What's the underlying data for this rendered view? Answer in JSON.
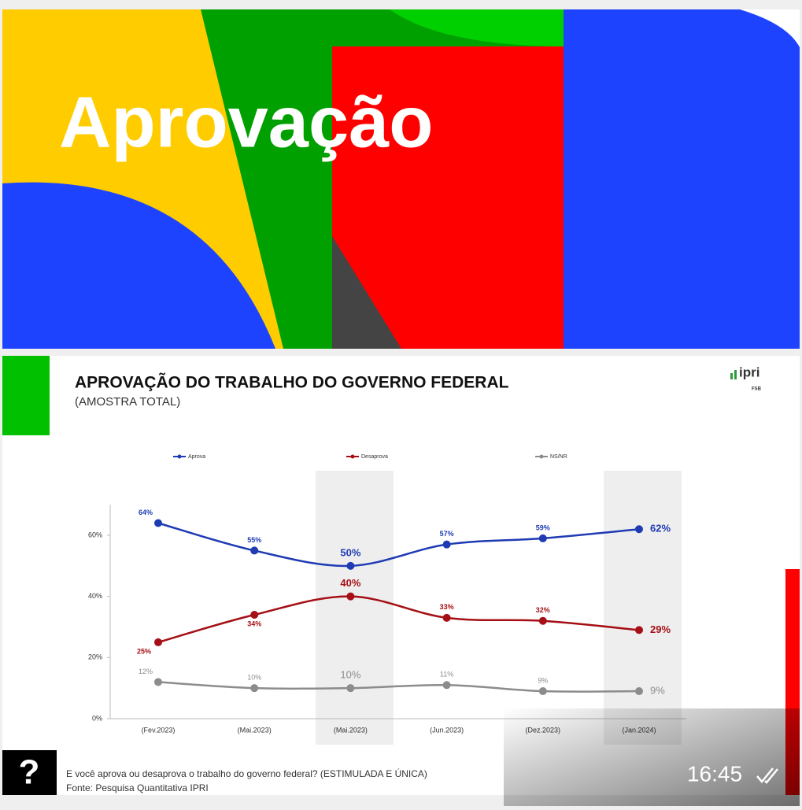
{
  "banner": {
    "title": "Aprovação"
  },
  "logo": {
    "name": "ipri",
    "sub": "FSB"
  },
  "chart_data": {
    "type": "line",
    "title": "APROVAÇÃO DO TRABALHO DO GOVERNO FEDERAL",
    "subtitle": "(AMOSTRA TOTAL)",
    "categories": [
      "(Fev.2023)",
      "(Mai.2023)",
      "(Mai.2023)",
      "(Jun.2023)",
      "(Dez.2023)",
      "(Jan.2024)"
    ],
    "series": [
      {
        "name": "Aprova",
        "color": "#1f3bb3",
        "values": [
          64,
          55,
          50,
          57,
          59,
          62
        ],
        "value_labels": [
          "64%",
          "55%",
          "50%",
          "57%",
          "59%",
          "62%"
        ]
      },
      {
        "name": "Desaprova",
        "color": "#a50f15",
        "values": [
          25,
          34,
          40,
          33,
          32,
          29
        ],
        "value_labels": [
          "25%",
          "34%",
          "40%",
          "33%",
          "32%",
          "29%"
        ]
      },
      {
        "name": "NS/NR",
        "color": "#8c8c8c",
        "values": [
          12,
          10,
          10,
          11,
          9,
          9
        ],
        "value_labels": [
          "12%",
          "10%",
          "10%",
          "11%",
          "9%",
          "9%"
        ]
      }
    ],
    "ylim": [
      0,
      70
    ],
    "yticks": [
      {
        "value": 0,
        "label": "0%"
      },
      {
        "value": 20,
        "label": "20%"
      },
      {
        "value": 40,
        "label": "40%"
      },
      {
        "value": 60,
        "label": "60%"
      }
    ],
    "legend": "top"
  },
  "question": "E você aprova ou desaprova o trabalho do governo federal? (ESTIMULADA E ÚNICA)",
  "source": "Fonte: Pesquisa Quantitativa IPRI",
  "help_icon": "?",
  "time": "16:45"
}
